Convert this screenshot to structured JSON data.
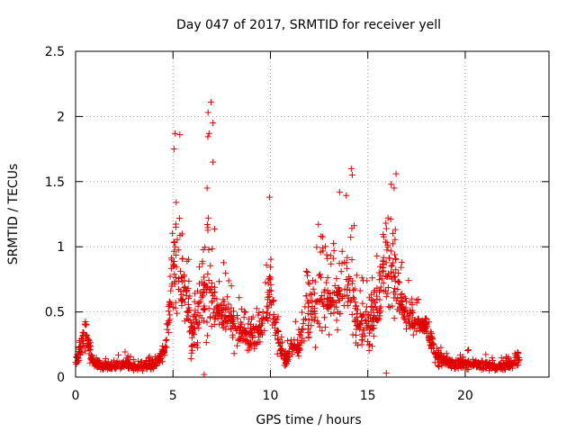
{
  "chart_data": {
    "type": "scatter",
    "title": "Day 047 of 2017, SRMTID for receiver yell",
    "xlabel": "GPS time / hours",
    "ylabel": "SRMTID / TECUs",
    "xlim": [
      0,
      24.3
    ],
    "ylim": [
      0,
      2.5
    ],
    "xticks": [
      0,
      5,
      10,
      15,
      20
    ],
    "xtick_labels": [
      "0",
      "5",
      "10",
      "15",
      "20"
    ],
    "yticks": [
      0,
      0.5,
      1,
      1.5,
      2,
      2.5
    ],
    "ytick_labels": [
      "0",
      "0.5",
      "1",
      "1.5",
      "2",
      "2.5"
    ],
    "grid": true,
    "marker": "+",
    "color": "#e00000",
    "x_range_of_data": [
      0,
      22.8
    ],
    "envelope_note": "estimated typical SRMTID level (min/typical/max) per time bin",
    "envelope": {
      "x": [
        0.0,
        0.3,
        0.5,
        0.8,
        1.0,
        1.5,
        2.0,
        2.5,
        3.0,
        3.5,
        4.0,
        4.3,
        4.6,
        4.8,
        5.0,
        5.2,
        5.5,
        5.8,
        6.0,
        6.3,
        6.6,
        6.8,
        7.0,
        7.3,
        7.6,
        8.0,
        8.5,
        9.0,
        9.5,
        9.8,
        10.0,
        10.2,
        10.5,
        10.8,
        11.0,
        11.5,
        12.0,
        12.5,
        13.0,
        13.5,
        14.0,
        14.3,
        14.6,
        15.0,
        15.5,
        15.8,
        16.0,
        16.3,
        16.6,
        17.0,
        17.5,
        18.0,
        18.3,
        18.5,
        19.0,
        19.5,
        20.0,
        20.5,
        21.0,
        21.5,
        22.0,
        22.5,
        22.8
      ],
      "lo": [
        0.05,
        0.1,
        0.15,
        0.08,
        0.05,
        0.04,
        0.04,
        0.05,
        0.04,
        0.04,
        0.05,
        0.06,
        0.1,
        0.25,
        0.3,
        0.3,
        0.25,
        0.2,
        0.05,
        0.05,
        0.1,
        0.15,
        0.2,
        0.2,
        0.2,
        0.15,
        0.1,
        0.15,
        0.2,
        0.3,
        0.35,
        0.2,
        0.08,
        0.05,
        0.1,
        0.1,
        0.15,
        0.2,
        0.25,
        0.3,
        0.3,
        0.1,
        0.1,
        0.15,
        0.15,
        0.3,
        0.35,
        0.3,
        0.35,
        0.3,
        0.3,
        0.3,
        0.1,
        0.06,
        0.05,
        0.05,
        0.05,
        0.05,
        0.04,
        0.04,
        0.04,
        0.05,
        0.08
      ],
      "mid": [
        0.1,
        0.25,
        0.32,
        0.15,
        0.1,
        0.08,
        0.08,
        0.1,
        0.08,
        0.08,
        0.1,
        0.14,
        0.2,
        0.45,
        0.8,
        0.95,
        0.7,
        0.5,
        0.3,
        0.4,
        0.6,
        0.8,
        0.55,
        0.5,
        0.45,
        0.4,
        0.35,
        0.3,
        0.35,
        0.5,
        0.7,
        0.4,
        0.2,
        0.12,
        0.2,
        0.25,
        0.5,
        0.55,
        0.55,
        0.6,
        0.7,
        0.5,
        0.4,
        0.4,
        0.5,
        0.8,
        0.9,
        0.8,
        0.6,
        0.45,
        0.4,
        0.4,
        0.25,
        0.15,
        0.12,
        0.1,
        0.1,
        0.1,
        0.09,
        0.08,
        0.08,
        0.1,
        0.15
      ],
      "hi": [
        0.15,
        0.3,
        0.45,
        0.25,
        0.15,
        0.14,
        0.15,
        0.2,
        0.14,
        0.13,
        0.18,
        0.25,
        0.35,
        0.6,
        1.3,
        1.85,
        1.2,
        1.0,
        0.6,
        0.8,
        1.2,
        2.1,
        1.3,
        1.1,
        0.9,
        0.75,
        0.65,
        0.55,
        0.6,
        0.9,
        1.4,
        0.8,
        0.35,
        0.25,
        0.4,
        0.6,
        1.0,
        1.2,
        1.0,
        1.1,
        1.6,
        1.4,
        0.8,
        1.0,
        1.0,
        1.35,
        1.5,
        1.55,
        1.0,
        0.8,
        0.65,
        0.7,
        0.45,
        0.25,
        0.22,
        0.22,
        0.22,
        0.2,
        0.18,
        0.16,
        0.15,
        0.18,
        0.25
      ]
    },
    "notable_points": [
      {
        "x": 5.05,
        "y": 1.75
      },
      {
        "x": 5.1,
        "y": 1.87
      },
      {
        "x": 5.35,
        "y": 1.86
      },
      {
        "x": 6.8,
        "y": 2.03
      },
      {
        "x": 6.95,
        "y": 2.11
      },
      {
        "x": 7.05,
        "y": 1.95
      },
      {
        "x": 6.85,
        "y": 1.87
      },
      {
        "x": 7.05,
        "y": 1.65
      },
      {
        "x": 6.75,
        "y": 1.45
      },
      {
        "x": 9.95,
        "y": 1.38
      },
      {
        "x": 14.15,
        "y": 1.6
      },
      {
        "x": 14.2,
        "y": 1.55
      },
      {
        "x": 13.55,
        "y": 1.42
      },
      {
        "x": 16.2,
        "y": 1.48
      },
      {
        "x": 16.45,
        "y": 1.56
      },
      {
        "x": 16.35,
        "y": 1.45
      },
      {
        "x": 15.95,
        "y": 0.03
      },
      {
        "x": 6.6,
        "y": 0.02
      },
      {
        "x": 13.8,
        "y": 0.88
      },
      {
        "x": 12.6,
        "y": 1.08
      }
    ]
  }
}
